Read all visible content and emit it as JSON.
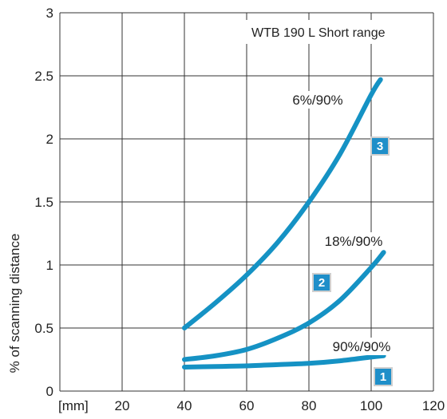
{
  "chart_data": {
    "type": "line",
    "title": "WTB 190 L Short range",
    "xlabel": "[mm]",
    "ylabel": "% of scanning distance",
    "xlim": [
      0,
      120
    ],
    "ylim": [
      0,
      3
    ],
    "xticks": [
      20,
      40,
      60,
      80,
      100,
      120
    ],
    "yticks": [
      0,
      0.5,
      1,
      1.5,
      2,
      2.5,
      3
    ],
    "grid": true,
    "line_color": "#1592c4",
    "badge_color": "#1f8fc9",
    "series": [
      {
        "name": "90%/90%",
        "badge": "1",
        "x": [
          40,
          50,
          60,
          70,
          80,
          90,
          100,
          104
        ],
        "y": [
          0.19,
          0.195,
          0.2,
          0.21,
          0.22,
          0.24,
          0.27,
          0.28
        ]
      },
      {
        "name": "18%/90%",
        "badge": "2",
        "x": [
          40,
          50,
          60,
          70,
          80,
          90,
          100,
          104
        ],
        "y": [
          0.25,
          0.28,
          0.33,
          0.42,
          0.54,
          0.72,
          0.98,
          1.1
        ]
      },
      {
        "name": "6%/90%",
        "badge": "3",
        "x": [
          40,
          50,
          60,
          70,
          80,
          90,
          100,
          103
        ],
        "y": [
          0.5,
          0.7,
          0.92,
          1.18,
          1.5,
          1.88,
          2.35,
          2.47
        ]
      }
    ]
  }
}
